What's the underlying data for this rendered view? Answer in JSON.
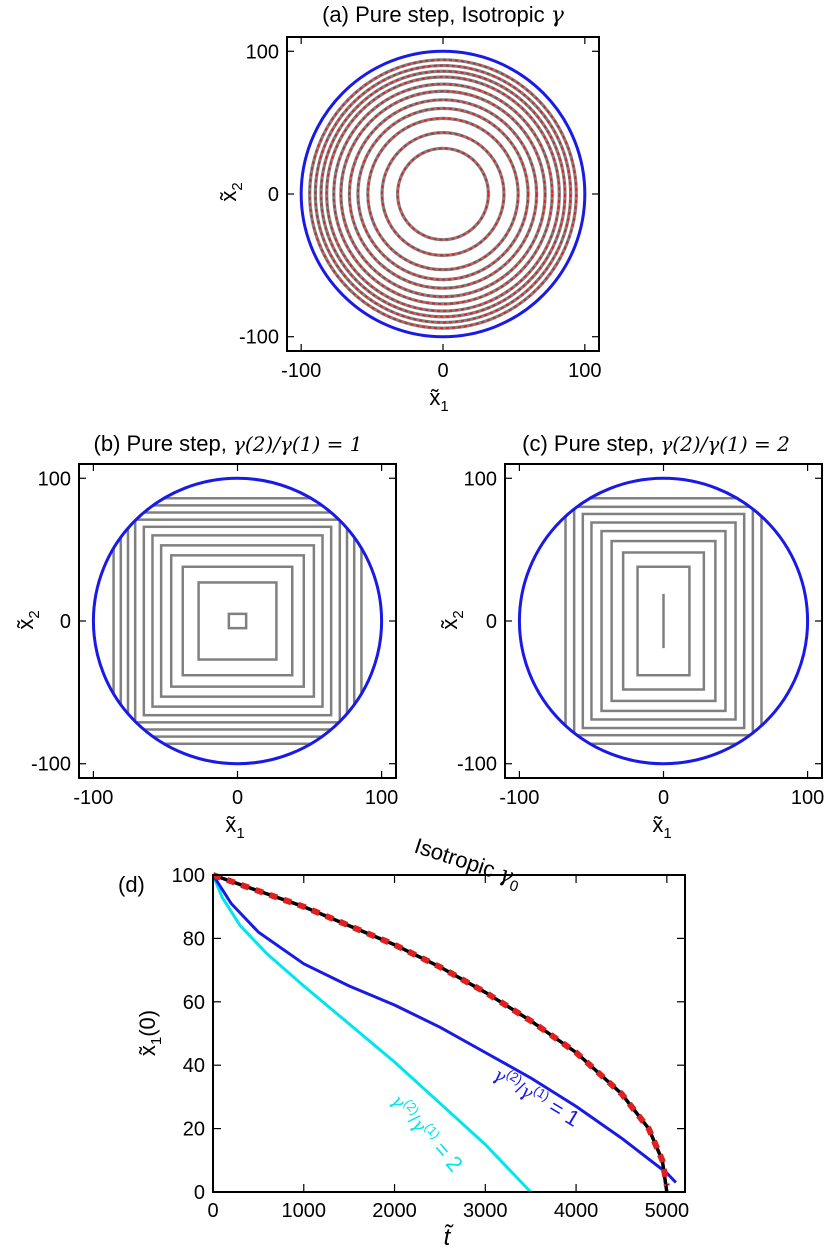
{
  "chart_data": [
    {
      "type": "line",
      "panel": "a",
      "title": "(a) Pure step, Isotropic",
      "title_symbol": "γ",
      "xlabel": "x̃",
      "xlabel_sub": "1",
      "ylabel": "x̃",
      "ylabel_sub": "2",
      "xlim": [
        -110,
        110
      ],
      "ylim": [
        -110,
        110
      ],
      "xticks": [
        -100,
        0,
        100
      ],
      "yticks": [
        -100,
        0,
        100
      ],
      "colors": {
        "boundary": "#1a1ae6",
        "contour": "#808080",
        "dash": "#e02020"
      },
      "boundary_radius": 100,
      "contour_radii": [
        32,
        43,
        53,
        60,
        66,
        72,
        77,
        82,
        86,
        90,
        94
      ]
    },
    {
      "type": "line",
      "panel": "b",
      "title": "(b) Pure step,",
      "title_ratio": "γ(2)/γ(1) = 1",
      "xlabel": "x̃",
      "xlabel_sub": "1",
      "ylabel": "x̃",
      "ylabel_sub": "2",
      "xlim": [
        -110,
        110
      ],
      "ylim": [
        -110,
        110
      ],
      "xticks": [
        -100,
        0,
        100
      ],
      "yticks": [
        -100,
        0,
        100
      ],
      "colors": {
        "boundary": "#1a1ae6",
        "contour": "#808080"
      },
      "boundary_radius": 100,
      "contour_half_widths": [
        [
          6,
          5
        ],
        [
          27,
          27
        ],
        [
          38,
          38
        ],
        [
          46,
          46
        ],
        [
          53,
          53
        ],
        [
          59,
          60
        ],
        [
          65,
          66
        ],
        [
          71,
          71
        ],
        [
          76,
          76
        ],
        [
          81,
          81
        ],
        [
          86,
          86
        ]
      ]
    },
    {
      "type": "line",
      "panel": "c",
      "title": "(c) Pure step,",
      "title_ratio": "γ(2)/γ(1) = 2",
      "xlabel": "x̃",
      "xlabel_sub": "1",
      "ylabel": "x̃",
      "ylabel_sub": "2",
      "xlim": [
        -110,
        110
      ],
      "ylim": [
        -110,
        110
      ],
      "xticks": [
        -100,
        0,
        100
      ],
      "yticks": [
        -100,
        0,
        100
      ],
      "colors": {
        "boundary": "#1a1ae6",
        "contour": "#808080"
      },
      "boundary_radius": 100,
      "contour_half_widths": [
        [
          0,
          19
        ],
        [
          18,
          38
        ],
        [
          28,
          48
        ],
        [
          36,
          56
        ],
        [
          43,
          63
        ],
        [
          50,
          69
        ],
        [
          56,
          75
        ],
        [
          62,
          80
        ],
        [
          68,
          86
        ]
      ]
    },
    {
      "type": "line",
      "panel": "d",
      "panel_label": "(d)",
      "xlabel": "t̃",
      "ylabel": "x̃",
      "ylabel_sub": "1",
      "ylabel_suffix": "(0)",
      "xlim": [
        0,
        5200
      ],
      "ylim": [
        0,
        100
      ],
      "xticks": [
        0,
        1000,
        2000,
        3000,
        4000,
        5000
      ],
      "yticks": [
        0,
        20,
        40,
        60,
        80,
        100
      ],
      "annotations": [
        "Isotropic γ0",
        "γ(2)/γ(1) = 1",
        "γ(2)/γ(1) = 2"
      ],
      "series": [
        {
          "name": "Isotropic γ0",
          "color": "#000000",
          "x": [
            0,
            500,
            1000,
            1500,
            2000,
            2500,
            3000,
            3500,
            4000,
            4500,
            4800,
            4950,
            5000
          ],
          "y": [
            100,
            95,
            90,
            84,
            78,
            71,
            63,
            54,
            44,
            31,
            20,
            10,
            0
          ]
        },
        {
          "name": "",
          "color": "#e02020",
          "x": [
            0,
            500,
            1000,
            1500,
            2000,
            2500,
            3000,
            3500,
            4000,
            4500,
            4800,
            4950,
            5000
          ],
          "y": [
            100,
            95,
            90,
            84,
            78,
            71,
            63,
            54,
            44,
            31,
            20,
            10,
            2
          ]
        },
        {
          "name": "γ(2)/γ(1) = 1",
          "color": "#1a1ae6",
          "x": [
            0,
            200,
            500,
            1000,
            1500,
            2000,
            2500,
            3000,
            3500,
            4000,
            4500,
            5000,
            5100
          ],
          "y": [
            100,
            91,
            82,
            72,
            65,
            59,
            52,
            44,
            36,
            27,
            17,
            6,
            3
          ]
        },
        {
          "name": "γ(2)/γ(1) = 2",
          "color": "#00e5ee",
          "x": [
            0,
            100,
            300,
            600,
            1000,
            1500,
            2000,
            2500,
            3000,
            3500
          ],
          "y": [
            100,
            93,
            84,
            75,
            65,
            53,
            41,
            28,
            15,
            0
          ]
        }
      ]
    }
  ]
}
